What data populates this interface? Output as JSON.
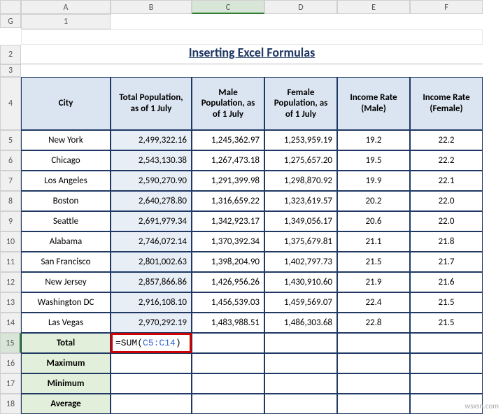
{
  "columns": [
    "A",
    "B",
    "C",
    "D",
    "E",
    "F",
    "G"
  ],
  "activeCol": "C",
  "activeRow": 15,
  "title": "Inserting Excel Formulas",
  "headers": {
    "city": "City",
    "totalPop": "Total Population, as of 1 July",
    "malePop": "Male Population, as of 1 July",
    "femalePop": "Female Population, as of 1 July",
    "incomeM": "Income Rate (Male)",
    "incomeF": "Income Rate (Female)"
  },
  "rows": [
    {
      "city": "New York",
      "total": "2,499,322.16",
      "male": "1,245,362.97",
      "female": "1,253,959.19",
      "im": "19.2",
      "if": "22.2"
    },
    {
      "city": "Chicago",
      "total": "2,543,130.38",
      "male": "1,267,473.18",
      "female": "1,275,657.20",
      "im": "19.5",
      "if": "22.2"
    },
    {
      "city": "Los Angeles",
      "total": "2,590,270.90",
      "male": "1,291,399.98",
      "female": "1,298,870.92",
      "im": "19.9",
      "if": "22.1"
    },
    {
      "city": "Boston",
      "total": "2,640,278.80",
      "male": "1,316,659.22",
      "female": "1,323,619.57",
      "im": "20.2",
      "if": "22.0"
    },
    {
      "city": "Seattle",
      "total": "2,691,979.34",
      "male": "1,342,923.17",
      "female": "1,349,056.17",
      "im": "20.6",
      "if": "22.0"
    },
    {
      "city": "Alabama",
      "total": "2,746,072.14",
      "male": "1,370,392.34",
      "female": "1,375,679.81",
      "im": "21.1",
      "if": "21.8"
    },
    {
      "city": "San Francisco",
      "total": "2,801,002.63",
      "male": "1,398,204.90",
      "female": "1,402,797.73",
      "im": "21.5",
      "if": "21.7"
    },
    {
      "city": "New Jersey",
      "total": "2,857,866.86",
      "male": "1,426,956.26",
      "female": "1,430,910.60",
      "im": "21.9",
      "if": "21.6"
    },
    {
      "city": "Washington DC",
      "total": "2,916,108.10",
      "male": "1,456,539.03",
      "female": "1,459,569.07",
      "im": "22.4",
      "if": "21.5"
    },
    {
      "city": "Las Vegas",
      "total": "2,970,292.19",
      "male": "1,483,988.51",
      "female": "1,486,303.68",
      "im": "22.8",
      "if": "21.5"
    }
  ],
  "summary": {
    "total": "Total",
    "max": "Maximum",
    "min": "Minimum",
    "avg": "Average"
  },
  "formula": {
    "prefix": "=SUM(",
    "ref": "C5:C14",
    "suffix": ")"
  },
  "colors": {
    "headerBg": "#dbe5f1",
    "border": "#1f3864",
    "summaryBg": "#e2efda",
    "titleColor": "#1f3864",
    "formulaBox": "#cc0000",
    "refColor": "#3366cc",
    "selectedBg": "#e8eef5"
  },
  "watermark": "wsxsn.com"
}
